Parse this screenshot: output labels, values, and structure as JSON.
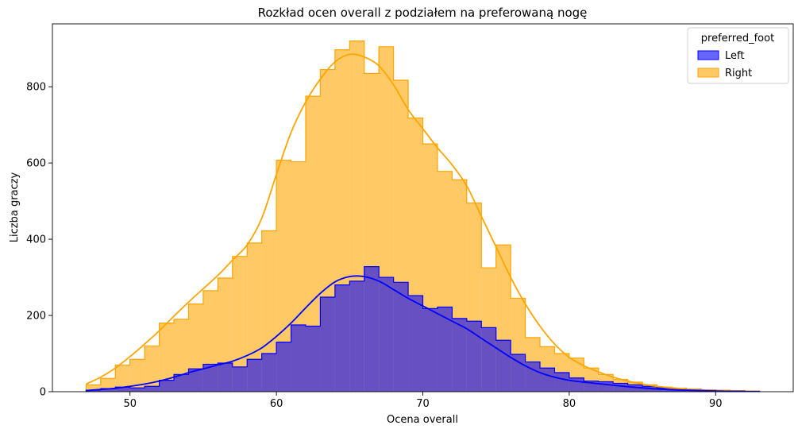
{
  "chart_data": {
    "type": "histogram",
    "title": "Rozkład ocen overall z podziałem na preferowaną nogę",
    "xlabel": "Ocena overall",
    "ylabel": "Liczba graczy",
    "xlim": [
      44.7,
      95.3
    ],
    "ylim": [
      0,
      965
    ],
    "x_ticks": [
      50,
      60,
      70,
      80,
      90
    ],
    "y_ticks": [
      0,
      200,
      400,
      600,
      800
    ],
    "bin_start": 47,
    "bin_width": 1,
    "legend": {
      "title": "preferred_foot",
      "placement": "top-right"
    },
    "series": [
      {
        "name": "Right",
        "color": "#ffa500",
        "values": [
          18,
          35,
          70,
          85,
          120,
          180,
          190,
          230,
          265,
          298,
          355,
          390,
          422,
          607,
          603,
          775,
          845,
          897,
          920,
          835,
          905,
          817,
          718,
          650,
          578,
          556,
          495,
          325,
          385,
          245,
          142,
          118,
          100,
          88,
          62,
          45,
          32,
          25,
          18,
          12,
          9,
          7,
          5,
          4,
          3,
          2
        ]
      },
      {
        "name": "Left",
        "color": "#0000ff",
        "values": [
          4,
          8,
          12,
          10,
          14,
          30,
          45,
          60,
          72,
          75,
          65,
          85,
          100,
          130,
          175,
          172,
          248,
          280,
          290,
          328,
          300,
          287,
          252,
          218,
          222,
          192,
          185,
          168,
          135,
          98,
          78,
          62,
          50,
          36,
          28,
          26,
          22,
          18,
          14,
          10,
          8,
          6,
          4,
          3,
          2,
          1
        ]
      }
    ],
    "kde": [
      {
        "name": "Right",
        "points": [
          [
            47,
            20
          ],
          [
            48,
            38
          ],
          [
            49,
            62
          ],
          [
            50,
            92
          ],
          [
            51,
            125
          ],
          [
            52,
            160
          ],
          [
            53,
            198
          ],
          [
            54,
            235
          ],
          [
            55,
            270
          ],
          [
            56,
            305
          ],
          [
            57,
            345
          ],
          [
            58,
            385
          ],
          [
            59,
            455
          ],
          [
            60,
            570
          ],
          [
            61,
            680
          ],
          [
            62,
            760
          ],
          [
            63,
            820
          ],
          [
            64,
            865
          ],
          [
            65,
            885
          ],
          [
            66,
            878
          ],
          [
            67,
            855
          ],
          [
            68,
            805
          ],
          [
            69,
            740
          ],
          [
            70,
            690
          ],
          [
            71,
            640
          ],
          [
            72,
            595
          ],
          [
            73,
            540
          ],
          [
            74,
            460
          ],
          [
            75,
            380
          ],
          [
            76,
            300
          ],
          [
            77,
            230
          ],
          [
            78,
            172
          ],
          [
            79,
            125
          ],
          [
            80,
            90
          ],
          [
            81,
            68
          ],
          [
            82,
            52
          ],
          [
            83,
            38
          ],
          [
            84,
            28
          ],
          [
            85,
            20
          ],
          [
            86,
            14
          ],
          [
            87,
            10
          ],
          [
            88,
            7
          ],
          [
            89,
            5
          ],
          [
            90,
            3
          ],
          [
            91,
            2
          ],
          [
            92,
            1
          ]
        ]
      },
      {
        "name": "Left",
        "points": [
          [
            47,
            3
          ],
          [
            48,
            6
          ],
          [
            49,
            9
          ],
          [
            50,
            14
          ],
          [
            51,
            20
          ],
          [
            52,
            28
          ],
          [
            53,
            38
          ],
          [
            54,
            50
          ],
          [
            55,
            60
          ],
          [
            56,
            70
          ],
          [
            57,
            80
          ],
          [
            58,
            95
          ],
          [
            59,
            115
          ],
          [
            60,
            145
          ],
          [
            61,
            180
          ],
          [
            62,
            220
          ],
          [
            63,
            258
          ],
          [
            64,
            288
          ],
          [
            65,
            302
          ],
          [
            66,
            302
          ],
          [
            67,
            290
          ],
          [
            68,
            268
          ],
          [
            69,
            245
          ],
          [
            70,
            225
          ],
          [
            71,
            205
          ],
          [
            72,
            185
          ],
          [
            73,
            165
          ],
          [
            74,
            140
          ],
          [
            75,
            115
          ],
          [
            76,
            90
          ],
          [
            77,
            68
          ],
          [
            78,
            50
          ],
          [
            79,
            38
          ],
          [
            80,
            30
          ],
          [
            81,
            25
          ],
          [
            82,
            21
          ],
          [
            83,
            17
          ],
          [
            84,
            13
          ],
          [
            85,
            10
          ],
          [
            86,
            7
          ],
          [
            87,
            5
          ],
          [
            88,
            4
          ],
          [
            89,
            3
          ],
          [
            90,
            2
          ],
          [
            91,
            1
          ],
          [
            92,
            1
          ]
        ]
      }
    ]
  }
}
